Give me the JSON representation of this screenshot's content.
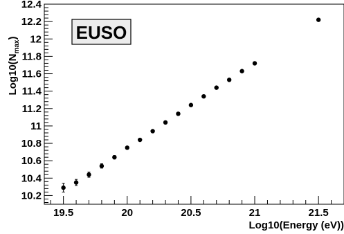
{
  "chart_data": {
    "type": "scatter",
    "title": "",
    "xlabel": "Log10(Energy (eV))",
    "ylabel_prefix": "Log10(N",
    "ylabel_sub": "max",
    "ylabel_suffix": ")",
    "legend_label": "EUSO",
    "legend_position": "top-left",
    "grid": false,
    "xlim": [
      19.35,
      21.7
    ],
    "ylim": [
      10.1,
      12.4
    ],
    "x_ticks": [
      19.5,
      20,
      20.5,
      21,
      21.5
    ],
    "x_tick_labels": [
      "19.5",
      "20",
      "20.5",
      "21",
      "21.5"
    ],
    "y_ticks": [
      10.2,
      10.4,
      10.6,
      10.8,
      11,
      11.2,
      11.4,
      11.6,
      11.8,
      12,
      12.2,
      12.4
    ],
    "y_tick_labels": [
      "10.2",
      "10.4",
      "10.6",
      "10.8",
      "11",
      "11.2",
      "11.4",
      "11.6",
      "11.8",
      "12",
      "12.2",
      "12.4"
    ],
    "series": [
      {
        "x": [
          19.5,
          19.6,
          19.7,
          19.8,
          19.9,
          20.0,
          20.1,
          20.2,
          20.3,
          20.4,
          20.5,
          20.6,
          20.7,
          20.8,
          20.9,
          21.0,
          21.5
        ],
        "y": [
          10.29,
          10.35,
          10.44,
          10.54,
          10.64,
          10.75,
          10.84,
          10.94,
          11.04,
          11.14,
          11.24,
          11.34,
          11.44,
          11.53,
          11.63,
          11.72,
          12.22
        ],
        "yerr": [
          0.05,
          0.035,
          0.03,
          0.025,
          0.02,
          0.015,
          0.01,
          0.01,
          0.01,
          0.01,
          0.01,
          0.01,
          0.01,
          0.01,
          0.01,
          0.01,
          0.01
        ]
      }
    ]
  }
}
